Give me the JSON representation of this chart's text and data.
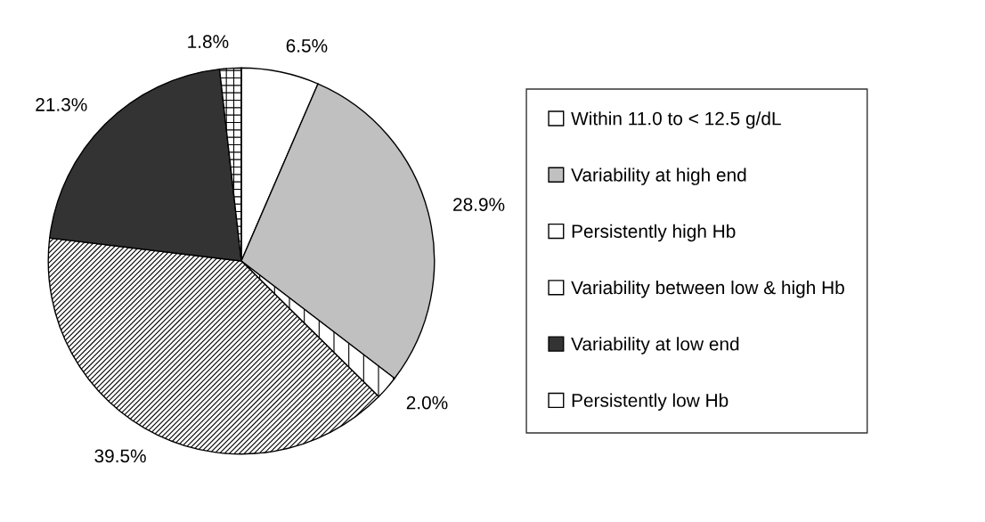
{
  "chart_data": {
    "type": "pie",
    "categories": [
      "Within 11.0 to < 12.5 g/dL",
      "Variability at high end",
      "Persistently high Hb",
      "Variability between low & high Hb",
      "Variability at low end",
      "Persistently low Hb"
    ],
    "values": [
      6.5,
      28.9,
      2.0,
      39.5,
      21.3,
      1.8
    ],
    "colors": [
      "#ffffff",
      "#c0c0c0",
      "#ffffff",
      "#ffffff",
      "#333333",
      "#ffffff"
    ],
    "value_labels": [
      "6.5%",
      "28.9%",
      "2.0%",
      "39.5%",
      "21.3%",
      "1.8%"
    ],
    "legend": "right"
  }
}
